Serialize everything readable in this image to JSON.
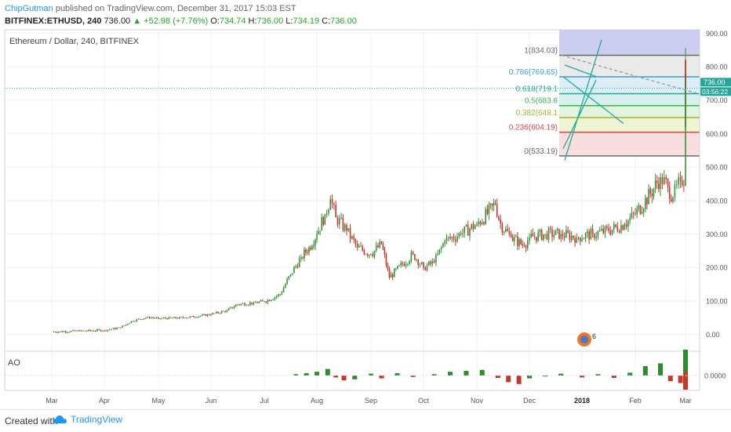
{
  "header": {
    "author": "ChipGutman",
    "published": " published on TradingView.com, December 31, 2017 15:03 EST",
    "symbol_line": "BITFINEX:ETHUSD, 240",
    "last": "736.00",
    "change": "▲ +52.98 (+7.76%)",
    "o_label": "O:",
    "o_val": "734.74",
    "h_label": "H:",
    "h_val": "736.00",
    "l_label": "L:",
    "l_val": "734.19",
    "c_label": "C:",
    "c_val": "736.00"
  },
  "footer": {
    "created": "Created with",
    "brand": "TradingView"
  },
  "colors": {
    "up": "#26a69a",
    "down": "#ef5350",
    "up_candle": "#3a8f3a",
    "down_candle": "#c0392b",
    "accent": "#2196f3"
  },
  "chart_data": {
    "type": "candlestick",
    "title": "Ethereum / Dollar, 240, BITFINEX",
    "price_axis": {
      "ylim": [
        -50,
        910
      ],
      "ticks": [
        "900.00",
        "800.00",
        "700.00",
        "600.00",
        "500.00",
        "400.00",
        "300.00",
        "200.00",
        "100.00",
        "0.00"
      ],
      "tick_values": [
        900,
        800,
        700,
        600,
        500,
        400,
        300,
        200,
        100,
        0
      ]
    },
    "current_price_label": "736.00",
    "countdown_label": "03:56:22",
    "time_axis": {
      "labels": [
        "Mar",
        "Apr",
        "May",
        "Jun",
        "Jul",
        "Aug",
        "Sep",
        "Oct",
        "Nov",
        "Dec",
        "2018",
        "Feb",
        "Mar"
      ]
    },
    "price_path": [
      [
        0,
        8
      ],
      [
        0.5,
        10
      ],
      [
        1,
        13
      ],
      [
        1.3,
        20
      ],
      [
        1.5,
        40
      ],
      [
        1.8,
        52
      ],
      [
        2,
        48
      ],
      [
        2.5,
        50
      ],
      [
        3,
        60
      ],
      [
        3.3,
        72
      ],
      [
        3.5,
        90
      ],
      [
        3.8,
        95
      ],
      [
        4,
        98
      ],
      [
        4.3,
        120
      ],
      [
        4.5,
        180
      ],
      [
        4.7,
        230
      ],
      [
        4.85,
        260
      ],
      [
        5,
        300
      ],
      [
        5.15,
        360
      ],
      [
        5.25,
        405
      ],
      [
        5.35,
        350
      ],
      [
        5.55,
        310
      ],
      [
        5.75,
        260
      ],
      [
        6.0,
        240
      ],
      [
        6.2,
        270
      ],
      [
        6.35,
        170
      ],
      [
        6.6,
        210
      ],
      [
        6.8,
        240
      ],
      [
        7.0,
        200
      ],
      [
        7.2,
        215
      ],
      [
        7.4,
        280
      ],
      [
        7.7,
        300
      ],
      [
        8.0,
        330
      ],
      [
        8.2,
        360
      ],
      [
        8.35,
        390
      ],
      [
        8.45,
        330
      ],
      [
        8.65,
        290
      ],
      [
        8.9,
        265
      ],
      [
        9.0,
        290
      ],
      [
        9.3,
        300
      ],
      [
        9.6,
        300
      ],
      [
        9.9,
        290
      ],
      [
        10.2,
        300
      ],
      [
        10.5,
        310
      ],
      [
        10.8,
        330
      ],
      [
        11.0,
        360
      ],
      [
        11.3,
        420
      ],
      [
        11.5,
        470
      ],
      [
        11.65,
        440
      ],
      [
        11.75,
        410
      ],
      [
        11.9,
        460
      ],
      [
        12.1,
        470
      ],
      [
        12.2,
        530
      ],
      [
        12.3,
        700
      ],
      [
        12.45,
        820
      ],
      [
        12.55,
        730
      ],
      [
        12.65,
        760
      ],
      [
        12.72,
        620
      ],
      [
        12.8,
        780
      ],
      [
        12.9,
        740
      ],
      [
        12.95,
        736
      ]
    ],
    "fibonacci": {
      "levels": [
        {
          "ratio": "1",
          "price": 834.03,
          "label": "1(834.03)",
          "color": "#6a6a6a"
        },
        {
          "ratio": "0.786",
          "price": 769.65,
          "label": "0.786(769.65)",
          "color": "#3f9ad6"
        },
        {
          "ratio": "0.618",
          "price": 719.1,
          "label": "0.618(719.1",
          "color": "#22a99a"
        },
        {
          "ratio": "0.5",
          "price": 683.6,
          "label": "0.5(683.6",
          "color": "#3cb44b"
        },
        {
          "ratio": "0.382",
          "price": 648.1,
          "label": "0.382(648.1",
          "color": "#a4b52c"
        },
        {
          "ratio": "0.236",
          "price": 604.19,
          "label": "0.236(604.19)",
          "color": "#d64545"
        },
        {
          "ratio": "0",
          "price": 533.19,
          "label": "0(533.19)",
          "color": "#6a6a6a"
        }
      ]
    },
    "ao": {
      "label": "AO",
      "axis_tick": "0.0000",
      "bars": [
        [
          4.6,
          0.3
        ],
        [
          4.8,
          0.5
        ],
        [
          5.0,
          0.8
        ],
        [
          5.2,
          1.4
        ],
        [
          5.35,
          -0.4
        ],
        [
          5.5,
          -1.0
        ],
        [
          5.7,
          -0.8
        ],
        [
          6.0,
          0.4
        ],
        [
          6.2,
          -0.6
        ],
        [
          6.5,
          0.5
        ],
        [
          6.8,
          -0.3
        ],
        [
          7.2,
          0.3
        ],
        [
          7.5,
          0.8
        ],
        [
          7.8,
          1.0
        ],
        [
          8.1,
          1.2
        ],
        [
          8.4,
          -0.5
        ],
        [
          8.6,
          -1.4
        ],
        [
          8.8,
          -1.8
        ],
        [
          9.0,
          -0.6
        ],
        [
          9.3,
          -0.2
        ],
        [
          9.6,
          0.4
        ],
        [
          10.0,
          -0.4
        ],
        [
          10.3,
          0.3
        ],
        [
          10.6,
          -0.5
        ],
        [
          10.9,
          0.6
        ],
        [
          11.2,
          2.0
        ],
        [
          11.5,
          2.6
        ],
        [
          11.7,
          -1.2
        ],
        [
          11.9,
          -1.6
        ],
        [
          12.1,
          1.4
        ],
        [
          12.3,
          4.5
        ],
        [
          12.45,
          5.5
        ],
        [
          12.55,
          2.0
        ],
        [
          12.65,
          -2.5
        ],
        [
          12.75,
          -3.0
        ],
        [
          12.85,
          2.0
        ],
        [
          12.95,
          0.8
        ]
      ]
    }
  }
}
